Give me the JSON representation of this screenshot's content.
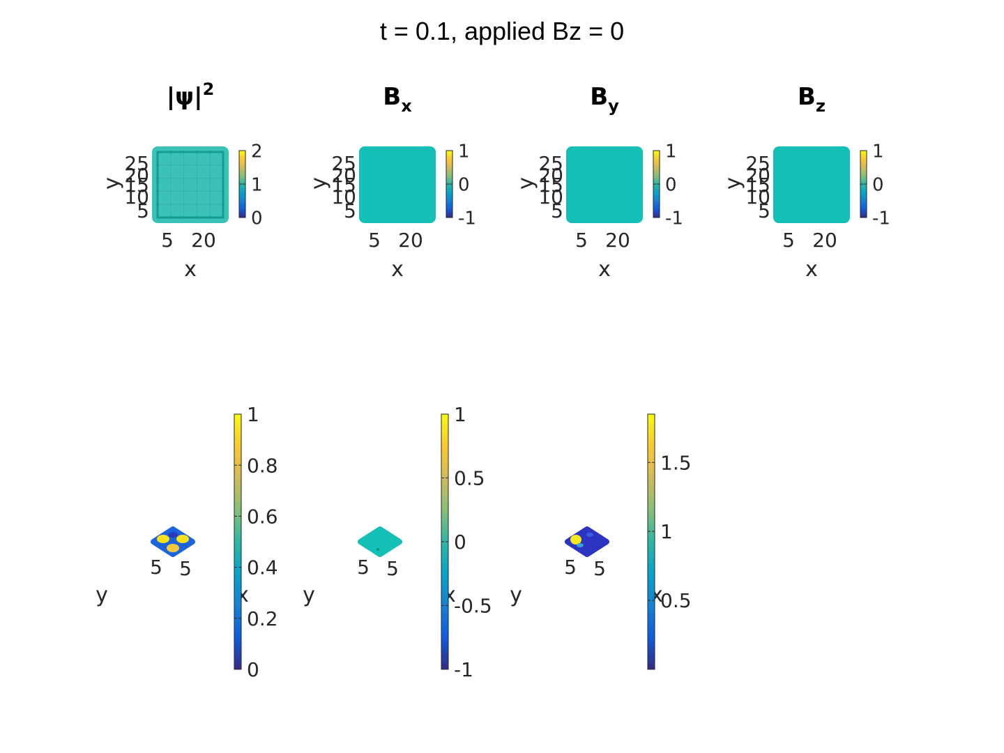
{
  "figure": {
    "title": "t = 0.1, applied Bz = 0"
  },
  "palette": {
    "parula": [
      "#352a87",
      "#0f5cdd",
      "#1481d6",
      "#06a4ca",
      "#2eb7a4",
      "#87bf77",
      "#d1bb59",
      "#fec832",
      "#f9fb0e"
    ],
    "teal": "#14bfb6",
    "teal_dark": "#149d92"
  },
  "chart_data": [
    {
      "type": "heatmap",
      "title": "|ψ|²",
      "title_base": "|ψ|",
      "title_sup": "2",
      "xlabel": "x",
      "ylabel": "y",
      "xticks": [
        "5",
        "20"
      ],
      "yticks": [
        "25",
        "20",
        "15",
        "10",
        "5"
      ],
      "colorbar": {
        "ticks": [
          "2",
          "1",
          "0"
        ],
        "range": [
          0,
          2
        ]
      },
      "uniform_value": 1,
      "grid_overlay": true
    },
    {
      "type": "heatmap",
      "title": "Bx",
      "title_base": "B",
      "title_sub": "x",
      "xlabel": "x",
      "ylabel": "y",
      "xticks": [
        "5",
        "20"
      ],
      "yticks": [
        "25",
        "20",
        "15",
        "10",
        "5"
      ],
      "colorbar": {
        "ticks": [
          "1",
          "0",
          "-1"
        ],
        "range": [
          -1,
          1
        ]
      },
      "uniform_value": 0
    },
    {
      "type": "heatmap",
      "title": "By",
      "title_base": "B",
      "title_sub": "y",
      "xlabel": "x",
      "ylabel": "y",
      "xticks": [
        "5",
        "20"
      ],
      "yticks": [
        "25",
        "20",
        "15",
        "10",
        "5"
      ],
      "colorbar": {
        "ticks": [
          "1",
          "0",
          "-1"
        ],
        "range": [
          -1,
          1
        ]
      },
      "uniform_value": 0
    },
    {
      "type": "heatmap",
      "title": "Bz",
      "title_base": "B",
      "title_sub": "z",
      "xlabel": "x",
      "ylabel": "y",
      "xticks": [
        "5",
        "20"
      ],
      "yticks": [
        "25",
        "20",
        "15",
        "10",
        "5"
      ],
      "colorbar": {
        "ticks": [
          "1",
          "0",
          "-1"
        ],
        "range": [
          -1,
          1
        ]
      },
      "uniform_value": 0
    },
    {
      "type": "heatmap",
      "view": "3d-surface",
      "xlabel": "x",
      "ylabel": "y",
      "xticks": [
        "5"
      ],
      "yticks": [
        "5"
      ],
      "colorbar": {
        "ticks": [
          "1",
          "0.8",
          "0.6",
          "0.4",
          "0.2",
          "0"
        ],
        "range": [
          0,
          1
        ]
      }
    },
    {
      "type": "heatmap",
      "view": "3d-surface",
      "xlabel": "x",
      "ylabel": "y",
      "xticks": [
        "5"
      ],
      "yticks": [
        "5"
      ],
      "colorbar": {
        "ticks": [
          "1",
          "0.5",
          "0",
          "-0.5",
          "-1"
        ],
        "range": [
          -1,
          1
        ]
      }
    },
    {
      "type": "heatmap",
      "view": "3d-surface",
      "xlabel": "x",
      "ylabel": "y",
      "xticks": [
        "5"
      ],
      "yticks": [
        "5"
      ],
      "colorbar": {
        "ticks": [
          "1.5",
          "1",
          "0.5"
        ],
        "range": [
          0,
          1.85
        ]
      }
    }
  ]
}
